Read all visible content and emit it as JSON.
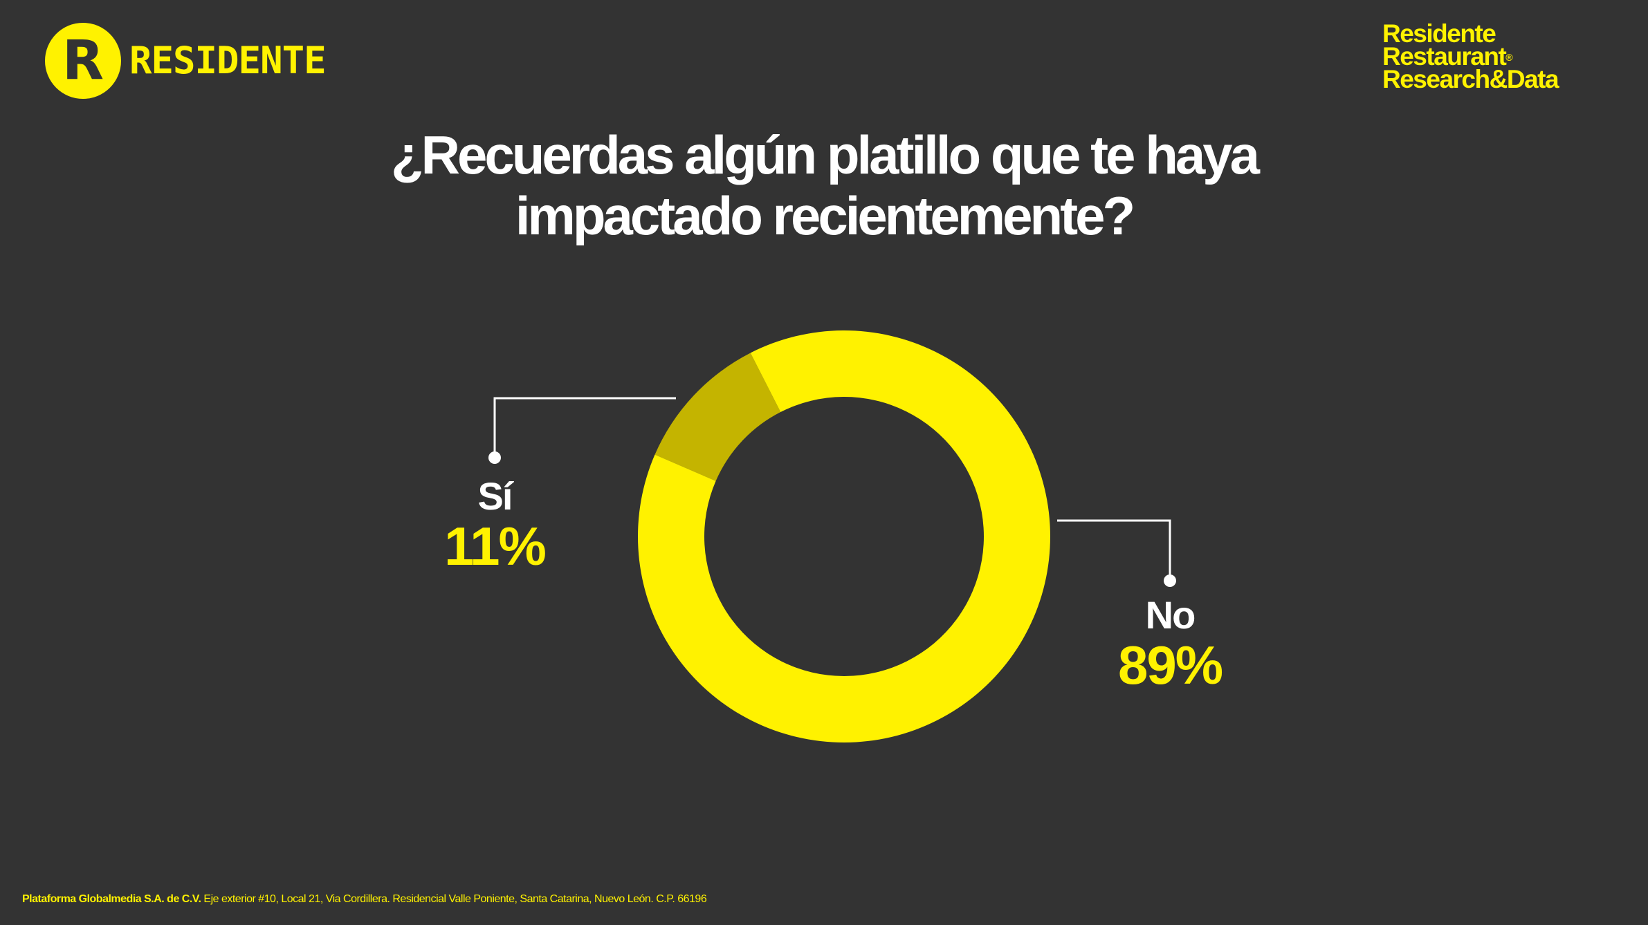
{
  "brand": {
    "logo_letter": "R",
    "logo_word": "RESIDENTE",
    "rrd_lines": [
      "Residente",
      "Restaurant",
      "Research&Data"
    ],
    "rrd_mark": "®"
  },
  "colors": {
    "background": "#333333",
    "accent": "#fff200",
    "accent_dark": "#c4b400",
    "text": "#ffffff"
  },
  "chart_data": {
    "type": "pie",
    "subtype": "donut",
    "title": "¿Recuerdas algún platillo que te haya impactado recientemente?",
    "title_lines": [
      "¿Recuerdas algún platillo que te haya",
      "impactado recientemente?"
    ],
    "categories": [
      "Sí",
      "No"
    ],
    "values": [
      11,
      89
    ],
    "value_labels": [
      "11%",
      "89%"
    ],
    "colors": [
      "#c4b400",
      "#fff200"
    ]
  },
  "footer": {
    "company": "Plataforma Globalmedia S.A. de C.V.",
    "address": "Eje exterior #10, Local 21, Via Cordillera. Residencial Valle Poniente, Santa Catarina, Nuevo León. C.P. 66196"
  }
}
